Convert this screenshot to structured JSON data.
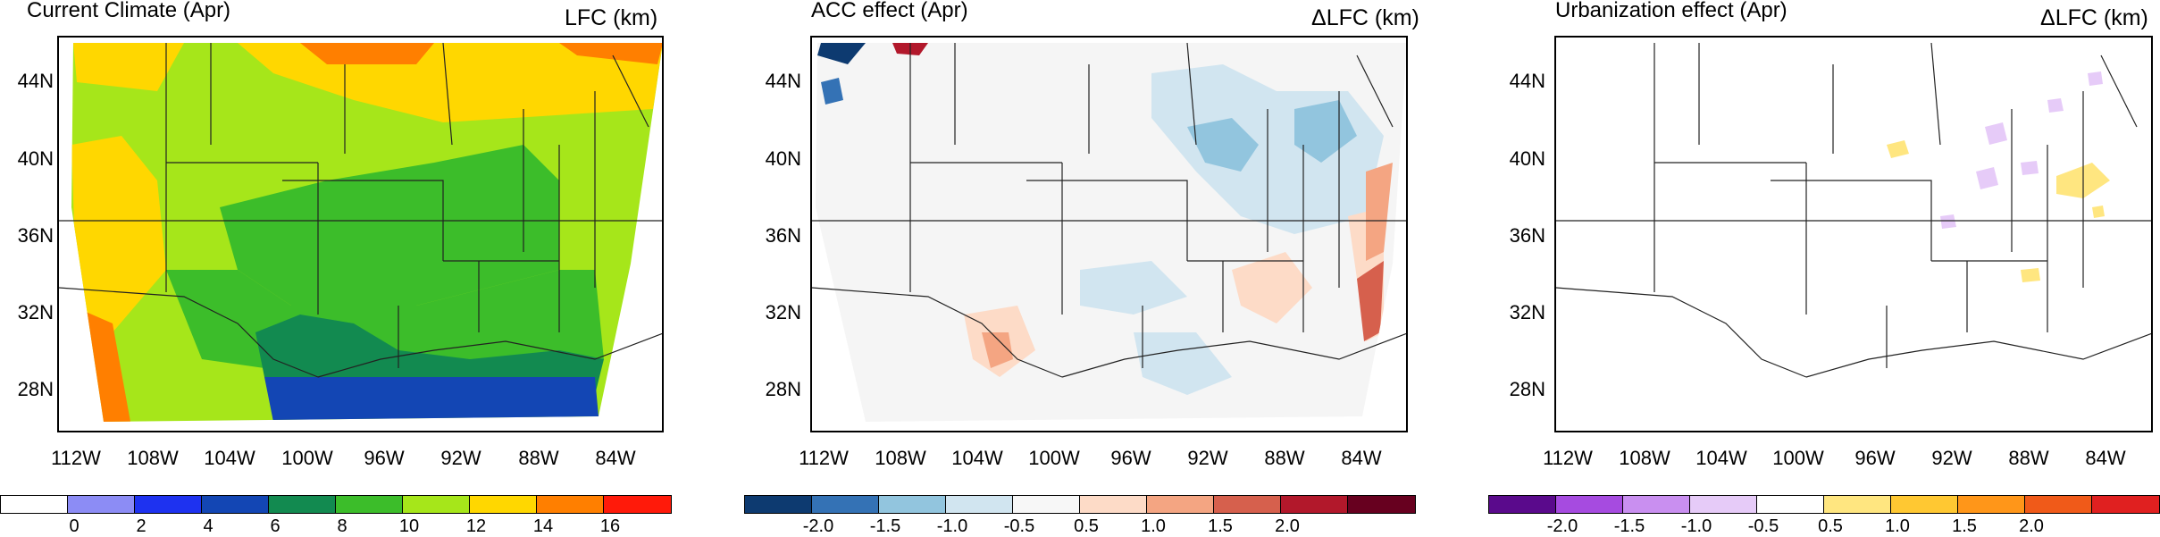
{
  "panels": [
    {
      "title": "Current Climate (Apr)",
      "label": "LFC (km)",
      "ylabels": [
        "44N",
        "40N",
        "36N",
        "32N",
        "28N"
      ],
      "xlabels": [
        "112W",
        "108W",
        "104W",
        "100W",
        "96W",
        "92W",
        "88W",
        "84W"
      ],
      "colorbar": {
        "colors": [
          "#ffffff",
          "#8c8cf5",
          "#1e32f0",
          "#1346b4",
          "#128a50",
          "#3cbd2a",
          "#a6e61a",
          "#ffd700",
          "#ff7f00",
          "#ff1a0a"
        ],
        "ticks": [
          "0",
          "2",
          "4",
          "6",
          "8",
          "10",
          "12",
          "14",
          "16"
        ]
      }
    },
    {
      "title": "ACC effect (Apr)",
      "label": "ΔLFC (km)",
      "ylabels": [
        "44N",
        "40N",
        "36N",
        "32N",
        "28N"
      ],
      "xlabels": [
        "112W",
        "108W",
        "104W",
        "100W",
        "96W",
        "92W",
        "88W",
        "84W"
      ],
      "colorbar": {
        "colors": [
          "#0d3a70",
          "#3472b5",
          "#92c5de",
          "#d1e5f0",
          "#f7f7f7",
          "#fddbc7",
          "#f4a582",
          "#d6604d",
          "#b2182b",
          "#67001f"
        ],
        "ticks": [
          "-2.0",
          "-1.5",
          "-1.0",
          "-0.5",
          "0.5",
          "1.0",
          "1.5",
          "2.0"
        ]
      }
    },
    {
      "title": "Urbanization effect (Apr)",
      "label": "ΔLFC (km)",
      "ylabels": [
        "44N",
        "40N",
        "36N",
        "32N",
        "28N"
      ],
      "xlabels": [
        "112W",
        "108W",
        "104W",
        "100W",
        "96W",
        "92W",
        "88W",
        "84W"
      ],
      "colorbar": {
        "colors": [
          "#5a0a8c",
          "#a64be0",
          "#c98ff0",
          "#e6cbf8",
          "#ffffff",
          "#ffe680",
          "#ffc832",
          "#ff9619",
          "#f05a19",
          "#e02020"
        ],
        "ticks": [
          "-2.0",
          "-1.5",
          "-1.0",
          "-0.5",
          "0.5",
          "1.0",
          "1.5",
          "2.0"
        ]
      }
    }
  ]
}
